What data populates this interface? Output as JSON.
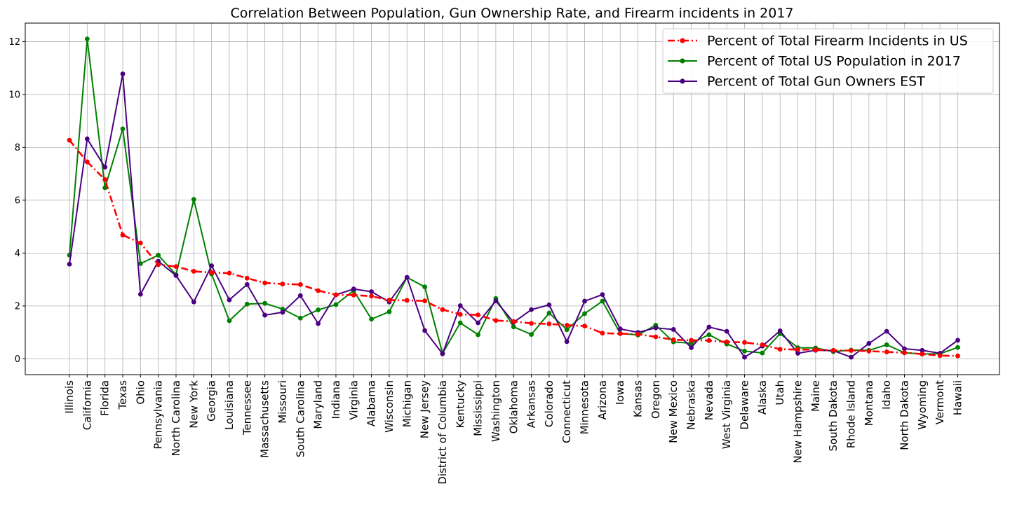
{
  "chart_data": {
    "type": "line",
    "title": "Correlation Between Population, Gun Ownership Rate, and Firearm incidents in 2017",
    "xlabel": "",
    "ylabel": "",
    "ylim": [
      -0.6,
      12.7
    ],
    "yticks": [
      0,
      2,
      4,
      6,
      8,
      10,
      12
    ],
    "grid": true,
    "legend_position": "top-right",
    "categories": [
      "Illinois",
      "California",
      "Florida",
      "Texas",
      "Ohio",
      "Pennsylvania",
      "North Carolina",
      "New York",
      "Georgia",
      "Louisiana",
      "Tennessee",
      "Massachusetts",
      "Missouri",
      "South Carolina",
      "Maryland",
      "Indiana",
      "Virginia",
      "Alabama",
      "Wisconsin",
      "Michigan",
      "New Jersey",
      "District of Columbia",
      "Kentucky",
      "Mississippi",
      "Washington",
      "Oklahoma",
      "Arkansas",
      "Colorado",
      "Connecticut",
      "Minnesota",
      "Arizona",
      "Iowa",
      "Kansas",
      "Oregon",
      "New Mexico",
      "Nebraska",
      "Nevada",
      "West Virginia",
      "Delaware",
      "Alaska",
      "Utah",
      "New Hampshire",
      "Maine",
      "South Dakota",
      "Rhode Island",
      "Montana",
      "Idaho",
      "North Dakota",
      "Wyoming",
      "Vermont",
      "Hawaii"
    ],
    "series": [
      {
        "name": "Percent of Total Firearm Incidents in US",
        "color": "#ff0000",
        "style": "dashdot",
        "values": [
          8.27,
          7.45,
          6.78,
          4.68,
          4.38,
          3.56,
          3.49,
          3.31,
          3.26,
          3.24,
          3.05,
          2.87,
          2.83,
          2.81,
          2.58,
          2.42,
          2.41,
          2.37,
          2.22,
          2.21,
          2.19,
          1.86,
          1.68,
          1.66,
          1.45,
          1.41,
          1.34,
          1.32,
          1.27,
          1.24,
          0.97,
          0.95,
          0.93,
          0.83,
          0.72,
          0.7,
          0.69,
          0.64,
          0.62,
          0.53,
          0.36,
          0.35,
          0.34,
          0.32,
          0.31,
          0.29,
          0.26,
          0.23,
          0.18,
          0.12,
          0.11
        ]
      },
      {
        "name": "Percent of Total US Population in 2017",
        "color": "#008000",
        "style": "solid",
        "values": [
          3.92,
          12.1,
          6.47,
          8.7,
          3.6,
          3.92,
          3.18,
          6.03,
          3.21,
          1.44,
          2.07,
          2.1,
          1.88,
          1.54,
          1.85,
          2.05,
          2.58,
          1.5,
          1.78,
          3.08,
          2.72,
          0.21,
          1.36,
          0.91,
          2.28,
          1.21,
          0.92,
          1.73,
          1.1,
          1.71,
          2.18,
          0.96,
          0.9,
          1.27,
          0.64,
          0.59,
          0.91,
          0.56,
          0.29,
          0.22,
          0.95,
          0.42,
          0.41,
          0.27,
          0.33,
          0.32,
          0.53,
          0.23,
          0.18,
          0.19,
          0.43
        ]
      },
      {
        "name": "Percent of Total Gun Owners EST",
        "color": "#4b0082",
        "style": "solid",
        "values": [
          3.58,
          8.32,
          7.25,
          10.78,
          2.44,
          3.69,
          3.15,
          2.15,
          3.52,
          2.23,
          2.81,
          1.65,
          1.76,
          2.39,
          1.33,
          2.42,
          2.64,
          2.54,
          2.15,
          3.08,
          1.07,
          0.19,
          2.01,
          1.36,
          2.19,
          1.38,
          1.86,
          2.04,
          0.65,
          2.18,
          2.43,
          1.13,
          1.0,
          1.17,
          1.11,
          0.42,
          1.2,
          1.04,
          0.06,
          0.48,
          1.06,
          0.21,
          0.32,
          0.31,
          0.06,
          0.58,
          1.04,
          0.38,
          0.32,
          0.21,
          0.7
        ]
      }
    ]
  }
}
